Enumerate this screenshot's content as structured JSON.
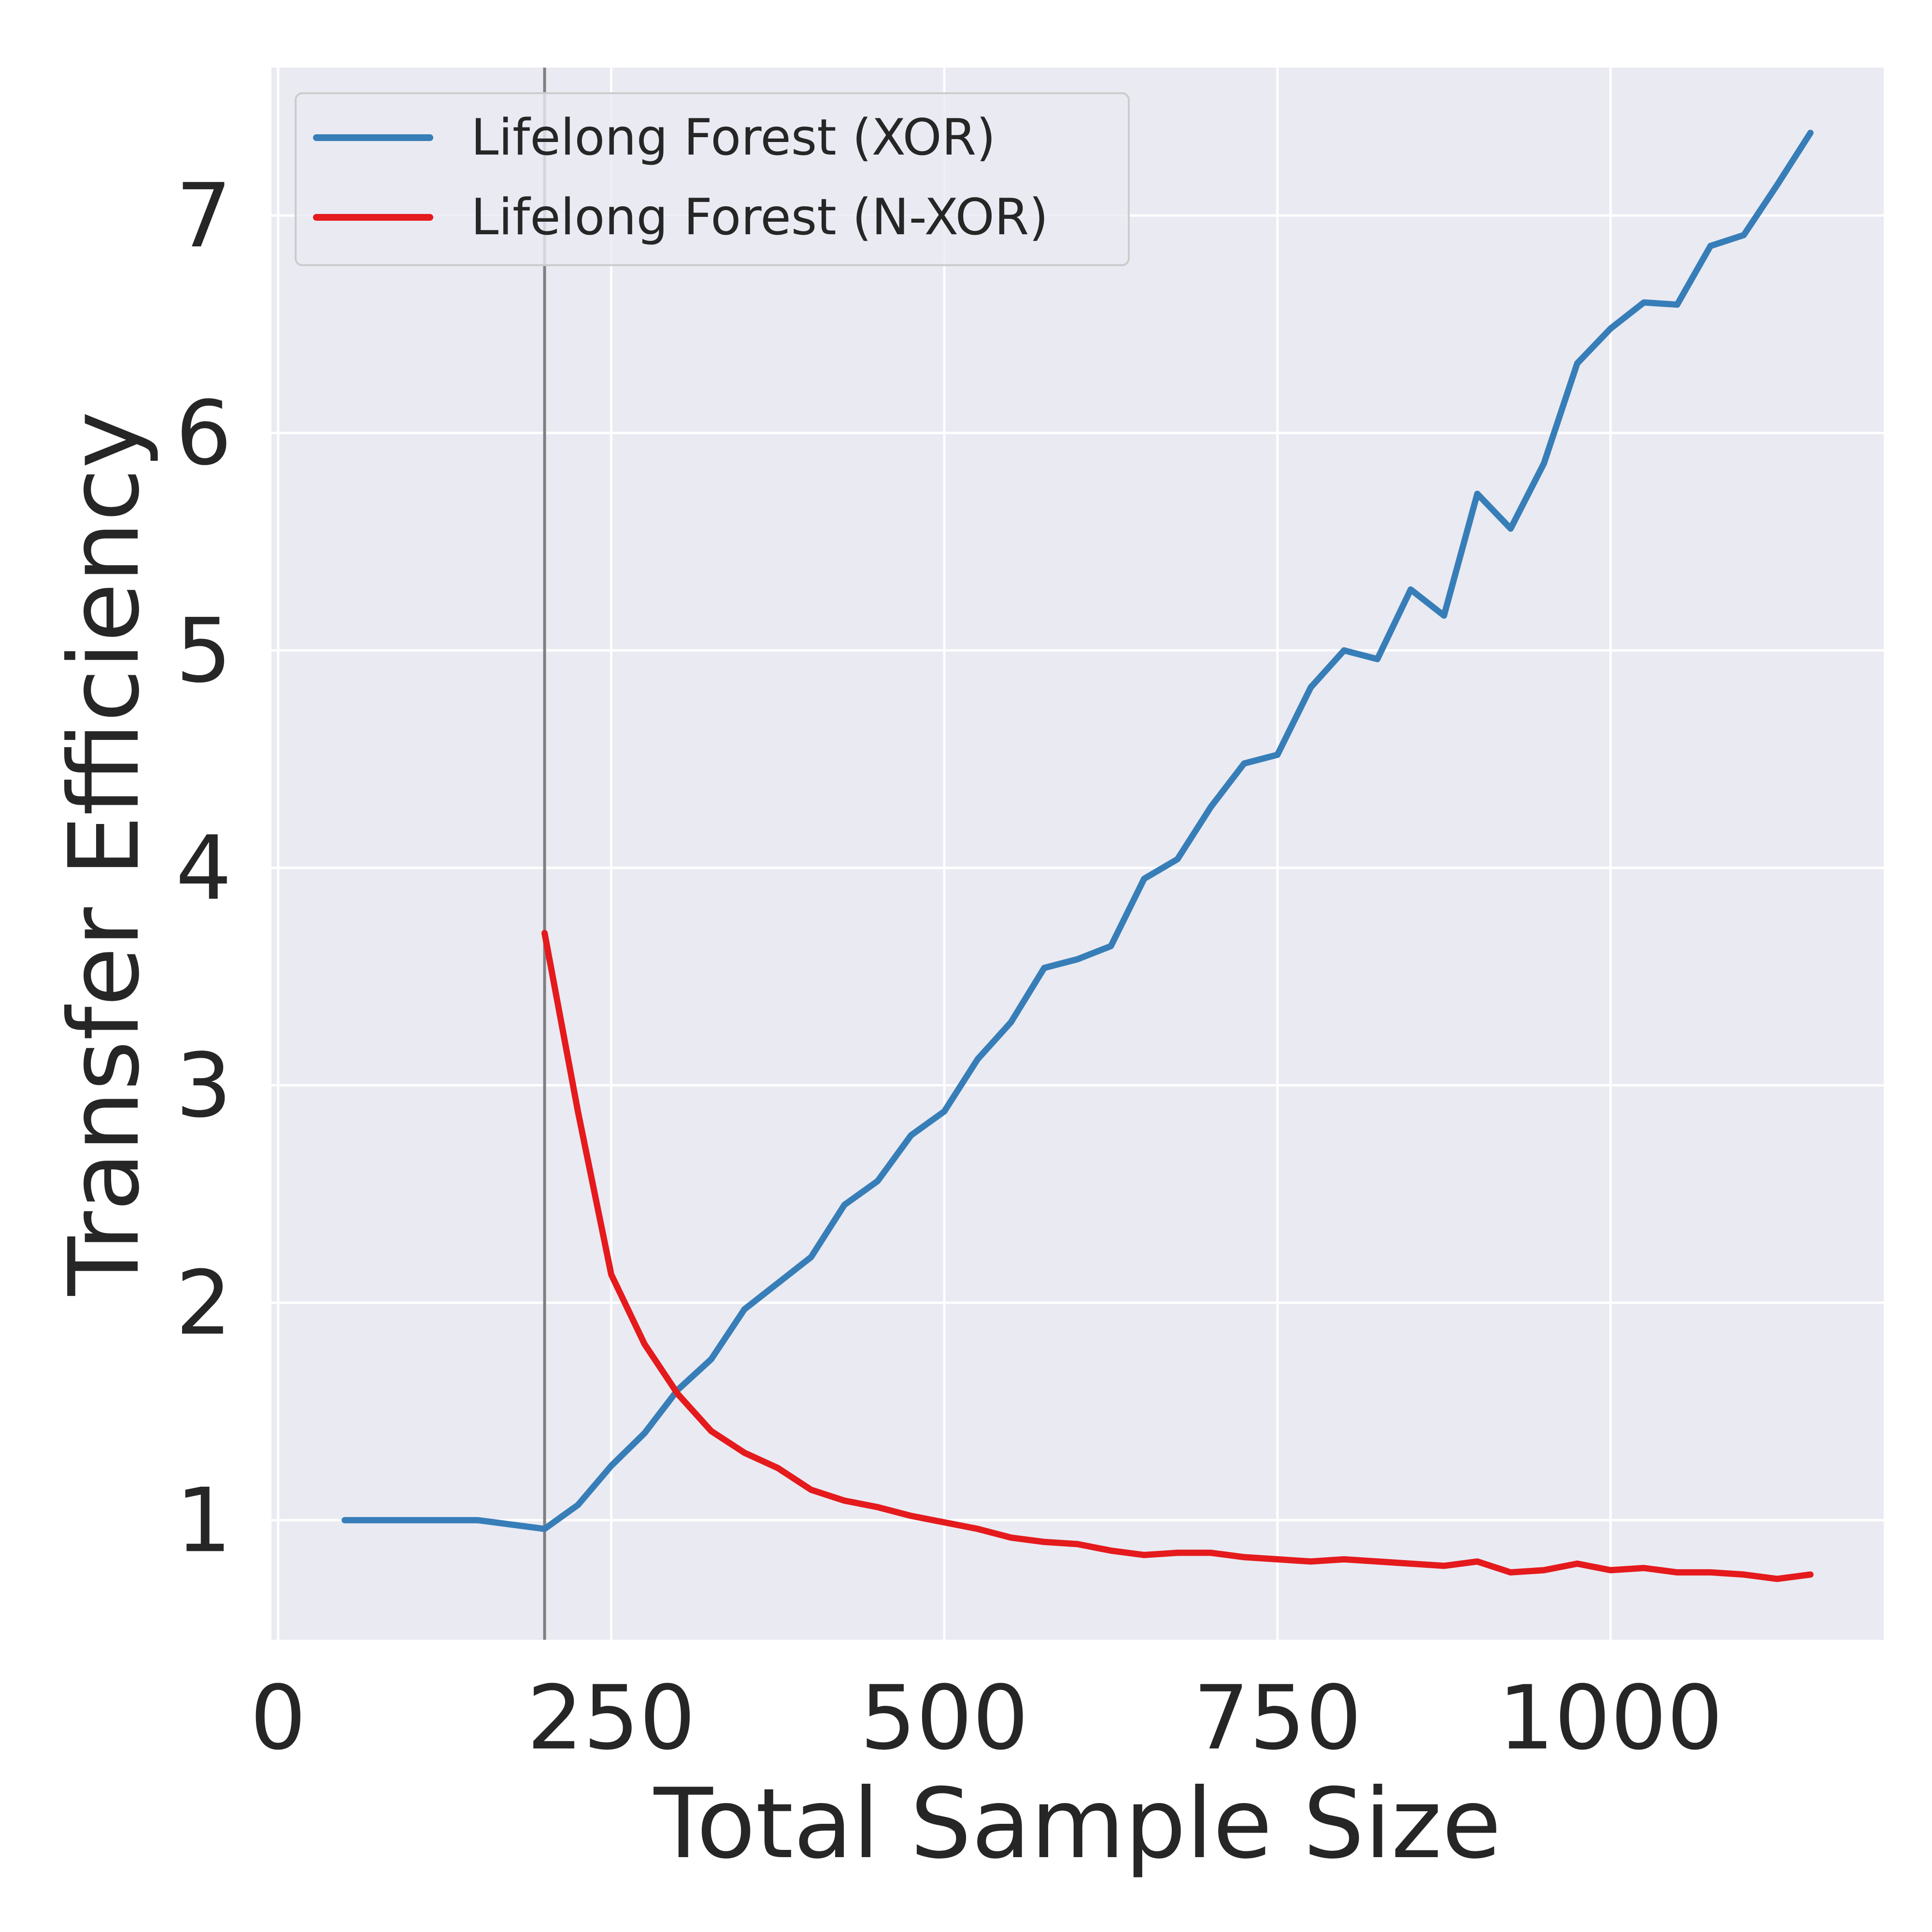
{
  "chart_data": {
    "type": "line",
    "title": "",
    "xlabel": "Total Sample Size",
    "ylabel": "Transfer Efficiency",
    "xlim": [
      -5,
      1205
    ],
    "ylim": [
      0.45,
      7.68
    ],
    "x_ticks": [
      0,
      250,
      500,
      750,
      1000
    ],
    "y_ticks": [
      1,
      2,
      3,
      4,
      5,
      6,
      7
    ],
    "grid": true,
    "legend_position": "top-left",
    "vertical_marker_x": 200,
    "series": [
      {
        "name": "Lifelong Forest (XOR)",
        "color": "#377eb8",
        "x": [
          50,
          75,
          100,
          125,
          150,
          175,
          200,
          225,
          250,
          275,
          300,
          325,
          350,
          375,
          400,
          425,
          450,
          475,
          500,
          525,
          550,
          575,
          600,
          625,
          650,
          675,
          700,
          725,
          750,
          775,
          800,
          825,
          850,
          875,
          900,
          925,
          950,
          975,
          1000,
          1025,
          1050,
          1075,
          1100,
          1125,
          1150
        ],
        "y": [
          1.0,
          1.0,
          1.0,
          1.0,
          1.0,
          0.98,
          0.96,
          1.07,
          1.25,
          1.4,
          1.6,
          1.74,
          1.97,
          2.09,
          2.21,
          2.45,
          2.56,
          2.77,
          2.88,
          3.12,
          3.29,
          3.54,
          3.58,
          3.64,
          3.95,
          4.04,
          4.28,
          4.48,
          4.52,
          4.83,
          5.0,
          4.96,
          5.28,
          5.16,
          5.72,
          5.56,
          5.86,
          6.32,
          6.48,
          6.6,
          6.59,
          6.86,
          6.91,
          7.14,
          7.38
        ]
      },
      {
        "name": "Lifelong Forest (N-XOR)",
        "color": "#e41a1c",
        "x": [
          200,
          225,
          250,
          275,
          300,
          325,
          350,
          375,
          400,
          425,
          450,
          475,
          500,
          525,
          550,
          575,
          600,
          625,
          650,
          675,
          700,
          725,
          750,
          775,
          800,
          825,
          850,
          875,
          900,
          925,
          950,
          975,
          1000,
          1025,
          1050,
          1075,
          1100,
          1125,
          1150
        ],
        "y": [
          3.7,
          2.88,
          2.13,
          1.81,
          1.58,
          1.41,
          1.31,
          1.24,
          1.14,
          1.09,
          1.06,
          1.02,
          0.99,
          0.96,
          0.92,
          0.9,
          0.89,
          0.86,
          0.84,
          0.85,
          0.85,
          0.83,
          0.82,
          0.81,
          0.82,
          0.81,
          0.8,
          0.79,
          0.81,
          0.76,
          0.77,
          0.8,
          0.77,
          0.78,
          0.76,
          0.76,
          0.75,
          0.73,
          0.75
        ]
      }
    ]
  }
}
